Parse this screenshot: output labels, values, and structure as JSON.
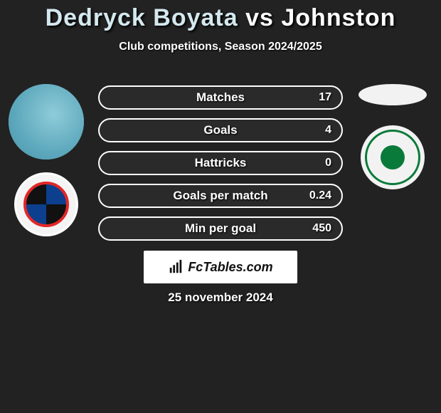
{
  "background_color": "#222222",
  "title": {
    "player1": "Dedryck Boyata",
    "vs": "vs",
    "player2": "Johnston",
    "fontsize": 34,
    "color_p1": "#d4e8ee",
    "color_vs": "#ffffff",
    "color_p2": "#ffffff"
  },
  "subtitle": {
    "text": "Club competitions, Season 2024/2025",
    "fontsize": 16
  },
  "players": {
    "left": {
      "name": "Dedryck Boyata",
      "photo_bg": "#6fb7c9",
      "club": "Club Brugge"
    },
    "right": {
      "name": "Johnston",
      "photo_bg": "#f2f2f2",
      "club": "Celtic"
    }
  },
  "bars": {
    "border_color": "#ffffff",
    "track_color": "#2a2a2a",
    "fill_color_left": "#2a2a2a",
    "height": 34,
    "radius": 17,
    "fontsize": 17,
    "rows": [
      {
        "label": "Matches",
        "value": "17",
        "fill_pct": 0
      },
      {
        "label": "Goals",
        "value": "4",
        "fill_pct": 0
      },
      {
        "label": "Hattricks",
        "value": "0",
        "fill_pct": 0
      },
      {
        "label": "Goals per match",
        "value": "0.24",
        "fill_pct": 0
      },
      {
        "label": "Min per goal",
        "value": "450",
        "fill_pct": 0
      }
    ]
  },
  "brand": {
    "text": "FcTables.com",
    "bg": "#ffffff",
    "color": "#111111"
  },
  "date": {
    "text": "25 november 2024",
    "fontsize": 17
  }
}
